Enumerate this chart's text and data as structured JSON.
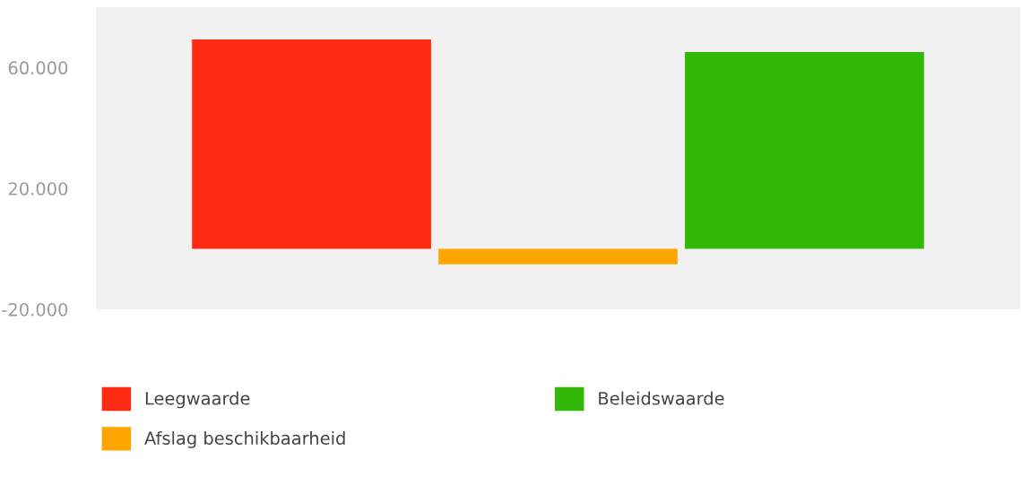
{
  "chart_data": {
    "type": "bar",
    "categories": [
      null
    ],
    "series": [
      {
        "name": "Leegwaarde",
        "color": "#ff2b12",
        "values": [
          69300
        ]
      },
      {
        "name": "Afslag beschikbaarheid",
        "color": "#ffa500",
        "values": [
          -5100
        ]
      },
      {
        "name": "Beleidswaarde",
        "color": "#32b807",
        "values": [
          65200
        ]
      }
    ],
    "ylim": [
      -20000,
      80000
    ],
    "yticks": [
      {
        "value": 60000,
        "label": "60.000"
      },
      {
        "value": 20000,
        "label": "20.000"
      },
      {
        "value": -20000,
        "label": "-20.000"
      }
    ],
    "grid": false,
    "legend": "bottom"
  }
}
